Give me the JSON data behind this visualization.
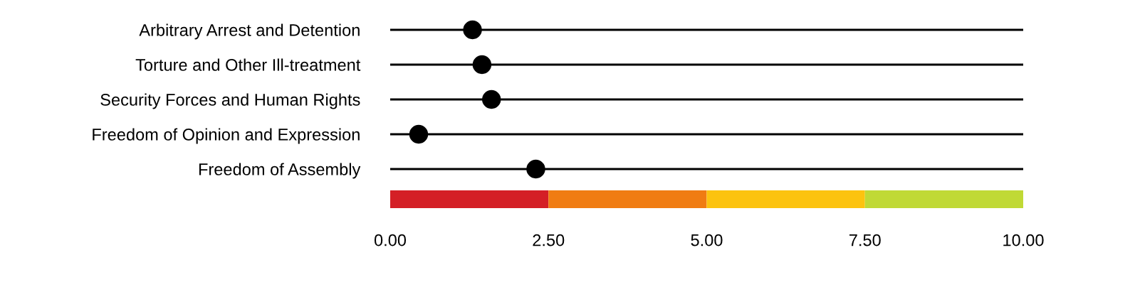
{
  "chart_data": {
    "type": "scatter",
    "orientation": "horizontal",
    "categories": [
      "Arbitrary Arrest and Detention",
      "Torture and Other Ill-treatment",
      "Security Forces and Human Rights",
      "Freedom of Opinion and Expression",
      "Freedom of Assembly"
    ],
    "values": [
      1.3,
      1.45,
      1.6,
      0.45,
      2.3
    ],
    "color": "#000000",
    "marker": "circle",
    "xlim": [
      0,
      10
    ],
    "xticks": [
      {
        "value": 0,
        "label": "0.00"
      },
      {
        "value": 2.5,
        "label": "2.50"
      },
      {
        "value": 5,
        "label": "5.00"
      },
      {
        "value": 7.5,
        "label": "7.50"
      },
      {
        "value": 10,
        "label": "10.00"
      }
    ],
    "grid": "y"
  }
}
